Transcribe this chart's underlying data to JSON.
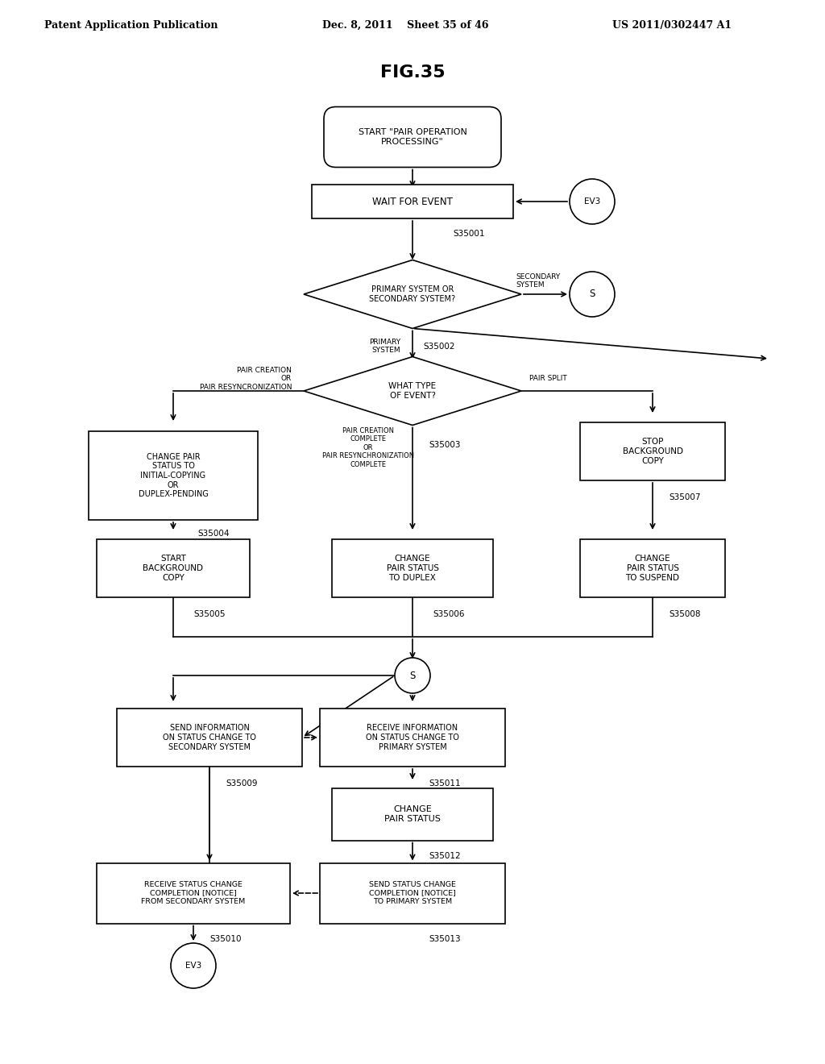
{
  "title": "FIG.35",
  "header_left": "Patent Application Publication",
  "header_center": "Dec. 8, 2011    Sheet 35 of 46",
  "header_right": "US 2011/0302447 A1",
  "background_color": "#ffffff",
  "text_color": "#000000"
}
